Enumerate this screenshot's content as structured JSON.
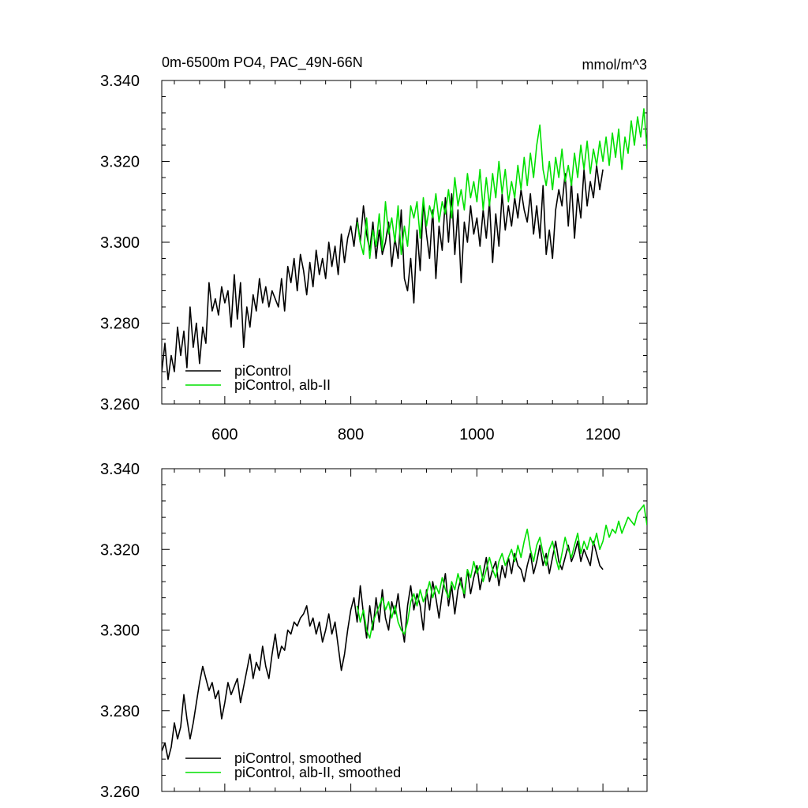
{
  "chart_data": [
    {
      "type": "line",
      "title": "0m-6500m PO4, PAC_49N-66N",
      "units": "mmol/m^3",
      "xlabel": "",
      "ylabel": "",
      "xlim": [
        500,
        1270
      ],
      "ylim": [
        3.26,
        3.34
      ],
      "x_ticks": [
        600,
        800,
        1000,
        1200
      ],
      "x_tick_labels": [
        "600",
        "800",
        "1000",
        "1200"
      ],
      "y_ticks": [
        3.26,
        3.28,
        3.3,
        3.32,
        3.34
      ],
      "y_tick_labels": [
        "3.260",
        "3.280",
        "3.300",
        "3.320",
        "3.340"
      ],
      "legend_position": "bottom-left",
      "series": [
        {
          "name": "piControl",
          "color": "#000000",
          "x": [
            500,
            505,
            510,
            515,
            520,
            525,
            530,
            535,
            540,
            545,
            550,
            555,
            560,
            565,
            570,
            575,
            580,
            585,
            590,
            595,
            600,
            605,
            610,
            615,
            620,
            625,
            630,
            635,
            640,
            645,
            650,
            655,
            660,
            665,
            670,
            675,
            680,
            685,
            690,
            695,
            700,
            705,
            710,
            715,
            720,
            725,
            730,
            735,
            740,
            745,
            750,
            755,
            760,
            765,
            770,
            775,
            780,
            785,
            790,
            795,
            800,
            805,
            810,
            815,
            820,
            825,
            830,
            835,
            840,
            845,
            850,
            855,
            860,
            865,
            870,
            875,
            880,
            885,
            890,
            895,
            900,
            905,
            910,
            915,
            920,
            925,
            930,
            935,
            940,
            945,
            950,
            955,
            960,
            965,
            970,
            975,
            980,
            985,
            990,
            995,
            1000,
            1005,
            1010,
            1015,
            1020,
            1025,
            1030,
            1035,
            1040,
            1045,
            1050,
            1055,
            1060,
            1065,
            1070,
            1075,
            1080,
            1085,
            1090,
            1095,
            1100,
            1105,
            1110,
            1115,
            1120,
            1125,
            1130,
            1135,
            1140,
            1145,
            1150,
            1155,
            1160,
            1165,
            1170,
            1175,
            1180,
            1185,
            1190,
            1195,
            1200
          ],
          "values": [
            3.268,
            3.275,
            3.266,
            3.272,
            3.268,
            3.279,
            3.272,
            3.278,
            3.269,
            3.284,
            3.274,
            3.28,
            3.27,
            3.279,
            3.275,
            3.29,
            3.283,
            3.286,
            3.282,
            3.289,
            3.285,
            3.288,
            3.279,
            3.292,
            3.281,
            3.29,
            3.274,
            3.284,
            3.279,
            3.287,
            3.283,
            3.291,
            3.285,
            3.289,
            3.284,
            3.288,
            3.286,
            3.284,
            3.291,
            3.283,
            3.294,
            3.29,
            3.296,
            3.288,
            3.297,
            3.293,
            3.287,
            3.295,
            3.289,
            3.298,
            3.292,
            3.296,
            3.291,
            3.3,
            3.294,
            3.299,
            3.292,
            3.302,
            3.295,
            3.301,
            3.304,
            3.299,
            3.306,
            3.3,
            3.309,
            3.302,
            3.298,
            3.305,
            3.296,
            3.303,
            3.297,
            3.3,
            3.305,
            3.294,
            3.301,
            3.296,
            3.308,
            3.291,
            3.288,
            3.296,
            3.285,
            3.303,
            3.293,
            3.31,
            3.302,
            3.296,
            3.308,
            3.291,
            3.304,
            3.298,
            3.311,
            3.3,
            3.312,
            3.297,
            3.308,
            3.29,
            3.305,
            3.3,
            3.309,
            3.302,
            3.306,
            3.299,
            3.308,
            3.301,
            3.31,
            3.295,
            3.307,
            3.299,
            3.312,
            3.303,
            3.309,
            3.304,
            3.311,
            3.306,
            3.313,
            3.308,
            3.305,
            3.312,
            3.302,
            3.309,
            3.301,
            3.314,
            3.297,
            3.303,
            3.296,
            3.308,
            3.313,
            3.309,
            3.317,
            3.304,
            3.315,
            3.301,
            3.312,
            3.306,
            3.318,
            3.309,
            3.315,
            3.311,
            3.319,
            3.313,
            3.318
          ]
        },
        {
          "name": "piControl, alb-II",
          "color": "#00e000",
          "x": [
            810,
            815,
            820,
            825,
            830,
            835,
            840,
            845,
            850,
            855,
            860,
            865,
            870,
            875,
            880,
            885,
            890,
            895,
            900,
            905,
            910,
            915,
            920,
            925,
            930,
            935,
            940,
            945,
            950,
            955,
            960,
            965,
            970,
            975,
            980,
            985,
            990,
            995,
            1000,
            1005,
            1010,
            1015,
            1020,
            1025,
            1030,
            1035,
            1040,
            1045,
            1050,
            1055,
            1060,
            1065,
            1070,
            1075,
            1080,
            1085,
            1090,
            1095,
            1100,
            1105,
            1110,
            1115,
            1120,
            1125,
            1130,
            1135,
            1140,
            1145,
            1150,
            1155,
            1160,
            1165,
            1170,
            1175,
            1180,
            1185,
            1190,
            1195,
            1200,
            1205,
            1210,
            1215,
            1220,
            1225,
            1230,
            1235,
            1240,
            1245,
            1250,
            1255,
            1260,
            1265,
            1270
          ],
          "values": [
            3.305,
            3.3,
            3.297,
            3.306,
            3.296,
            3.303,
            3.299,
            3.307,
            3.298,
            3.31,
            3.302,
            3.306,
            3.3,
            3.309,
            3.297,
            3.304,
            3.299,
            3.309,
            3.306,
            3.31,
            3.301,
            3.311,
            3.304,
            3.309,
            3.306,
            3.312,
            3.305,
            3.31,
            3.307,
            3.313,
            3.306,
            3.316,
            3.309,
            3.313,
            3.308,
            3.317,
            3.311,
            3.315,
            3.31,
            3.318,
            3.308,
            3.316,
            3.309,
            3.317,
            3.311,
            3.32,
            3.312,
            3.318,
            3.31,
            3.315,
            3.311,
            3.319,
            3.313,
            3.321,
            3.314,
            3.322,
            3.316,
            3.324,
            3.329,
            3.318,
            3.314,
            3.32,
            3.313,
            3.321,
            3.316,
            3.323,
            3.315,
            3.319,
            3.314,
            3.322,
            3.316,
            3.324,
            3.318,
            3.325,
            3.317,
            3.323,
            3.319,
            3.325,
            3.32,
            3.326,
            3.319,
            3.327,
            3.321,
            3.328,
            3.318,
            3.326,
            3.322,
            3.33,
            3.324,
            3.331,
            3.326,
            3.333,
            3.323
          ]
        }
      ]
    },
    {
      "type": "line",
      "title": "",
      "xlim": [
        500,
        1270
      ],
      "ylim": [
        3.26,
        3.34
      ],
      "y_ticks": [
        3.26,
        3.28,
        3.3,
        3.32,
        3.34
      ],
      "y_tick_labels": [
        "3.260",
        "3.280",
        "3.300",
        "3.320",
        "3.340"
      ],
      "legend_position": "bottom-left",
      "series": [
        {
          "name": "piControl, smoothed",
          "color": "#000000",
          "x": [
            500,
            505,
            510,
            515,
            520,
            525,
            530,
            535,
            540,
            545,
            550,
            555,
            560,
            565,
            570,
            575,
            580,
            585,
            590,
            595,
            600,
            605,
            610,
            615,
            620,
            625,
            630,
            635,
            640,
            645,
            650,
            655,
            660,
            665,
            670,
            675,
            680,
            685,
            690,
            695,
            700,
            705,
            710,
            715,
            720,
            725,
            730,
            735,
            740,
            745,
            750,
            755,
            760,
            765,
            770,
            775,
            780,
            785,
            790,
            795,
            800,
            805,
            810,
            815,
            820,
            825,
            830,
            835,
            840,
            845,
            850,
            855,
            860,
            865,
            870,
            875,
            880,
            885,
            890,
            895,
            900,
            905,
            910,
            915,
            920,
            925,
            930,
            935,
            940,
            945,
            950,
            955,
            960,
            965,
            970,
            975,
            980,
            985,
            990,
            995,
            1000,
            1005,
            1010,
            1015,
            1020,
            1025,
            1030,
            1035,
            1040,
            1045,
            1050,
            1055,
            1060,
            1065,
            1070,
            1075,
            1080,
            1085,
            1090,
            1095,
            1100,
            1105,
            1110,
            1115,
            1120,
            1125,
            1130,
            1135,
            1140,
            1145,
            1150,
            1155,
            1160,
            1165,
            1170,
            1175,
            1180,
            1185,
            1190,
            1195,
            1200
          ],
          "values": [
            3.27,
            3.272,
            3.268,
            3.271,
            3.277,
            3.273,
            3.276,
            3.284,
            3.278,
            3.273,
            3.277,
            3.282,
            3.287,
            3.291,
            3.288,
            3.285,
            3.287,
            3.283,
            3.285,
            3.278,
            3.282,
            3.287,
            3.284,
            3.286,
            3.288,
            3.282,
            3.286,
            3.29,
            3.294,
            3.288,
            3.292,
            3.29,
            3.296,
            3.291,
            3.288,
            3.294,
            3.299,
            3.293,
            3.296,
            3.295,
            3.3,
            3.299,
            3.302,
            3.301,
            3.303,
            3.304,
            3.306,
            3.301,
            3.303,
            3.299,
            3.302,
            3.297,
            3.3,
            3.304,
            3.299,
            3.302,
            3.296,
            3.29,
            3.294,
            3.3,
            3.305,
            3.308,
            3.302,
            3.311,
            3.304,
            3.298,
            3.306,
            3.3,
            3.308,
            3.302,
            3.31,
            3.303,
            3.3,
            3.307,
            3.304,
            3.309,
            3.302,
            3.297,
            3.306,
            3.311,
            3.305,
            3.309,
            3.306,
            3.3,
            3.31,
            3.305,
            3.312,
            3.308,
            3.303,
            3.309,
            3.314,
            3.306,
            3.311,
            3.304,
            3.31,
            3.313,
            3.308,
            3.315,
            3.309,
            3.313,
            3.316,
            3.31,
            3.314,
            3.318,
            3.312,
            3.315,
            3.317,
            3.311,
            3.316,
            3.313,
            3.318,
            3.314,
            3.319,
            3.316,
            3.315,
            3.312,
            3.316,
            3.319,
            3.314,
            3.317,
            3.321,
            3.316,
            3.319,
            3.314,
            3.318,
            3.322,
            3.317,
            3.315,
            3.318,
            3.321,
            3.317,
            3.319,
            3.322,
            3.317,
            3.32,
            3.318,
            3.316,
            3.322,
            3.319,
            3.316,
            3.315
          ]
        },
        {
          "name": "piControl, alb-II, smoothed",
          "color": "#00e000",
          "x": [
            810,
            815,
            820,
            825,
            830,
            835,
            840,
            845,
            850,
            855,
            860,
            865,
            870,
            875,
            880,
            885,
            890,
            895,
            900,
            905,
            910,
            915,
            920,
            925,
            930,
            935,
            940,
            945,
            950,
            955,
            960,
            965,
            970,
            975,
            980,
            985,
            990,
            995,
            1000,
            1005,
            1010,
            1015,
            1020,
            1025,
            1030,
            1035,
            1040,
            1045,
            1050,
            1055,
            1060,
            1065,
            1070,
            1075,
            1080,
            1085,
            1090,
            1095,
            1100,
            1105,
            1110,
            1115,
            1120,
            1125,
            1130,
            1135,
            1140,
            1145,
            1150,
            1155,
            1160,
            1165,
            1170,
            1175,
            1180,
            1185,
            1190,
            1195,
            1200,
            1205,
            1210,
            1215,
            1220,
            1225,
            1230,
            1235,
            1240,
            1245,
            1250,
            1255,
            1260,
            1265,
            1270
          ],
          "values": [
            3.306,
            3.302,
            3.305,
            3.3,
            3.298,
            3.302,
            3.304,
            3.306,
            3.308,
            3.305,
            3.307,
            3.303,
            3.306,
            3.302,
            3.3,
            3.299,
            3.302,
            3.307,
            3.309,
            3.306,
            3.31,
            3.307,
            3.309,
            3.312,
            3.308,
            3.311,
            3.309,
            3.313,
            3.31,
            3.308,
            3.312,
            3.31,
            3.314,
            3.311,
            3.309,
            3.315,
            3.313,
            3.317,
            3.314,
            3.316,
            3.312,
            3.315,
            3.318,
            3.315,
            3.313,
            3.317,
            3.319,
            3.316,
            3.318,
            3.32,
            3.317,
            3.321,
            3.318,
            3.322,
            3.325,
            3.32,
            3.317,
            3.321,
            3.323,
            3.319,
            3.316,
            3.32,
            3.322,
            3.318,
            3.315,
            3.319,
            3.323,
            3.32,
            3.318,
            3.321,
            3.324,
            3.319,
            3.322,
            3.32,
            3.323,
            3.321,
            3.324,
            3.32,
            3.322,
            3.326,
            3.323,
            3.325,
            3.324,
            3.327,
            3.324,
            3.326,
            3.328,
            3.327,
            3.326,
            3.329,
            3.33,
            3.331,
            3.326
          ]
        }
      ]
    }
  ]
}
